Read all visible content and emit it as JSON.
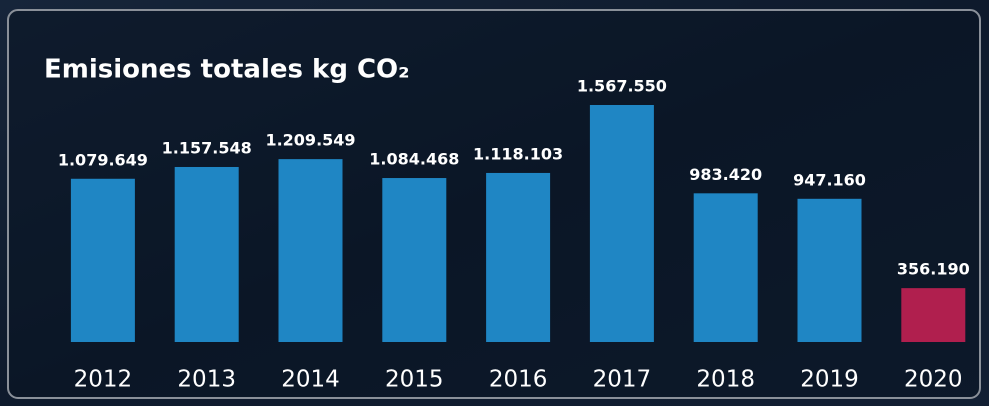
{
  "chart_data": {
    "type": "bar",
    "title": "Emisiones totales kg CO₂",
    "categories": [
      "2012",
      "2013",
      "2014",
      "2015",
      "2016",
      "2017",
      "2018",
      "2019",
      "2020"
    ],
    "values": [
      1079649,
      1157548,
      1209549,
      1084468,
      1118103,
      1567550,
      983420,
      947160,
      356190
    ],
    "value_labels": [
      "1.079.649",
      "1.157.548",
      "1.209.549",
      "1.084.468",
      "1.118.103",
      "1.567.550",
      "983.420",
      "947.160",
      "356.190"
    ],
    "colors": [
      "#1f86c4",
      "#1f86c4",
      "#1f86c4",
      "#1f86c4",
      "#1f86c4",
      "#1f86c4",
      "#1f86c4",
      "#1f86c4",
      "#b01f4e"
    ]
  }
}
